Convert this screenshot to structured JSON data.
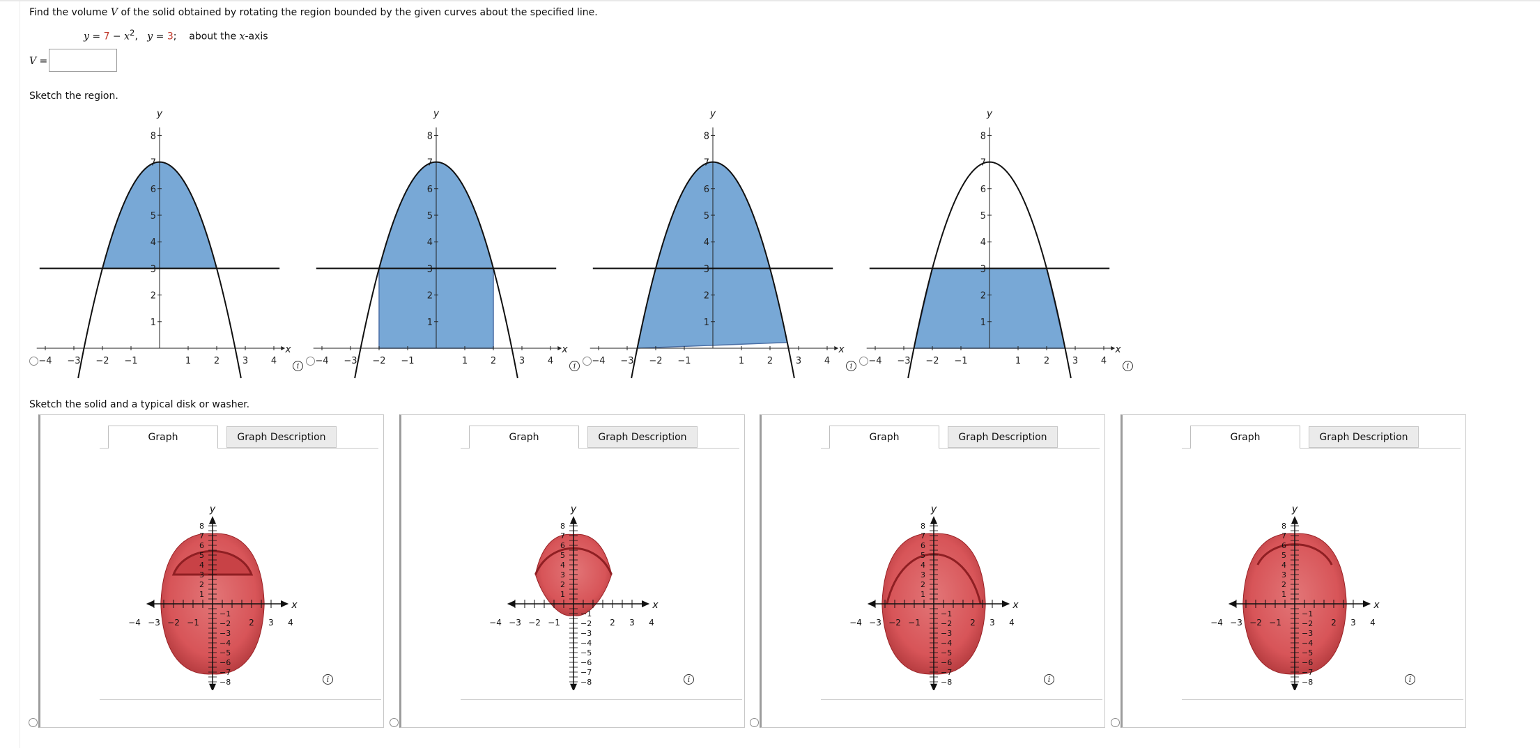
{
  "question": {
    "prompt_a": "Find the volume ",
    "prompt_var": "V",
    "prompt_b": " of the solid obtained by rotating the region bounded by the given curves about the specified line.",
    "eq1_y": "y",
    "eq1_eq": " = ",
    "eq1_const": "7",
    "eq1_rest": " − x",
    "eq1_sup": "2",
    "eq1_comma": ",",
    "eq2_y": "y",
    "eq2_eq": " = ",
    "eq2_val": "3",
    "eq2_semi": ";",
    "about_a": "about the ",
    "about_var": "x",
    "about_b": "-axis"
  },
  "answer": {
    "label": "V =",
    "value": ""
  },
  "sections": {
    "region": "Sketch the region.",
    "solid": "Sketch the solid and a typical disk or washer."
  },
  "region_graph": {
    "x_label": "x",
    "y_label": "y",
    "x_ticks": [
      "−4",
      "−3",
      "−2",
      "−1",
      "1",
      "2",
      "3",
      "4"
    ],
    "y_ticks": [
      "1",
      "2",
      "3",
      "4",
      "5",
      "6",
      "7",
      "8"
    ],
    "fill_color": "#78a8d6",
    "stroke_color": "#4a6fa5"
  },
  "region_options": [
    {
      "shading": "between parabola and y=3, above y=3",
      "selected": false
    },
    {
      "shading": "under parabola from x=-2 to x=2",
      "selected": false
    },
    {
      "shading": "under parabola",
      "selected": false
    },
    {
      "shading": "under y=3 within parabola",
      "selected": false
    }
  ],
  "solid_graph": {
    "x_label": "x",
    "y_label": "y",
    "x_ticks": [
      "−4",
      "−3",
      "−2",
      "−1",
      "2",
      "3",
      "4"
    ],
    "y_ticks_pos": [
      "1",
      "2",
      "3",
      "4",
      "5",
      "6",
      "7",
      "8"
    ],
    "y_ticks_neg": [
      "−1",
      "−2",
      "−3",
      "−4",
      "−5",
      "−6",
      "−7",
      "−8"
    ],
    "solid_color": "#d4464a"
  },
  "solid_tabs": {
    "graph": "Graph",
    "description": "Graph Description"
  },
  "solid_options": [
    {
      "variant": "washer-outer",
      "selected": false
    },
    {
      "variant": "small-cap",
      "selected": false
    },
    {
      "variant": "full-solid",
      "selected": false
    },
    {
      "variant": "solid-with-cap",
      "selected": false
    }
  ]
}
